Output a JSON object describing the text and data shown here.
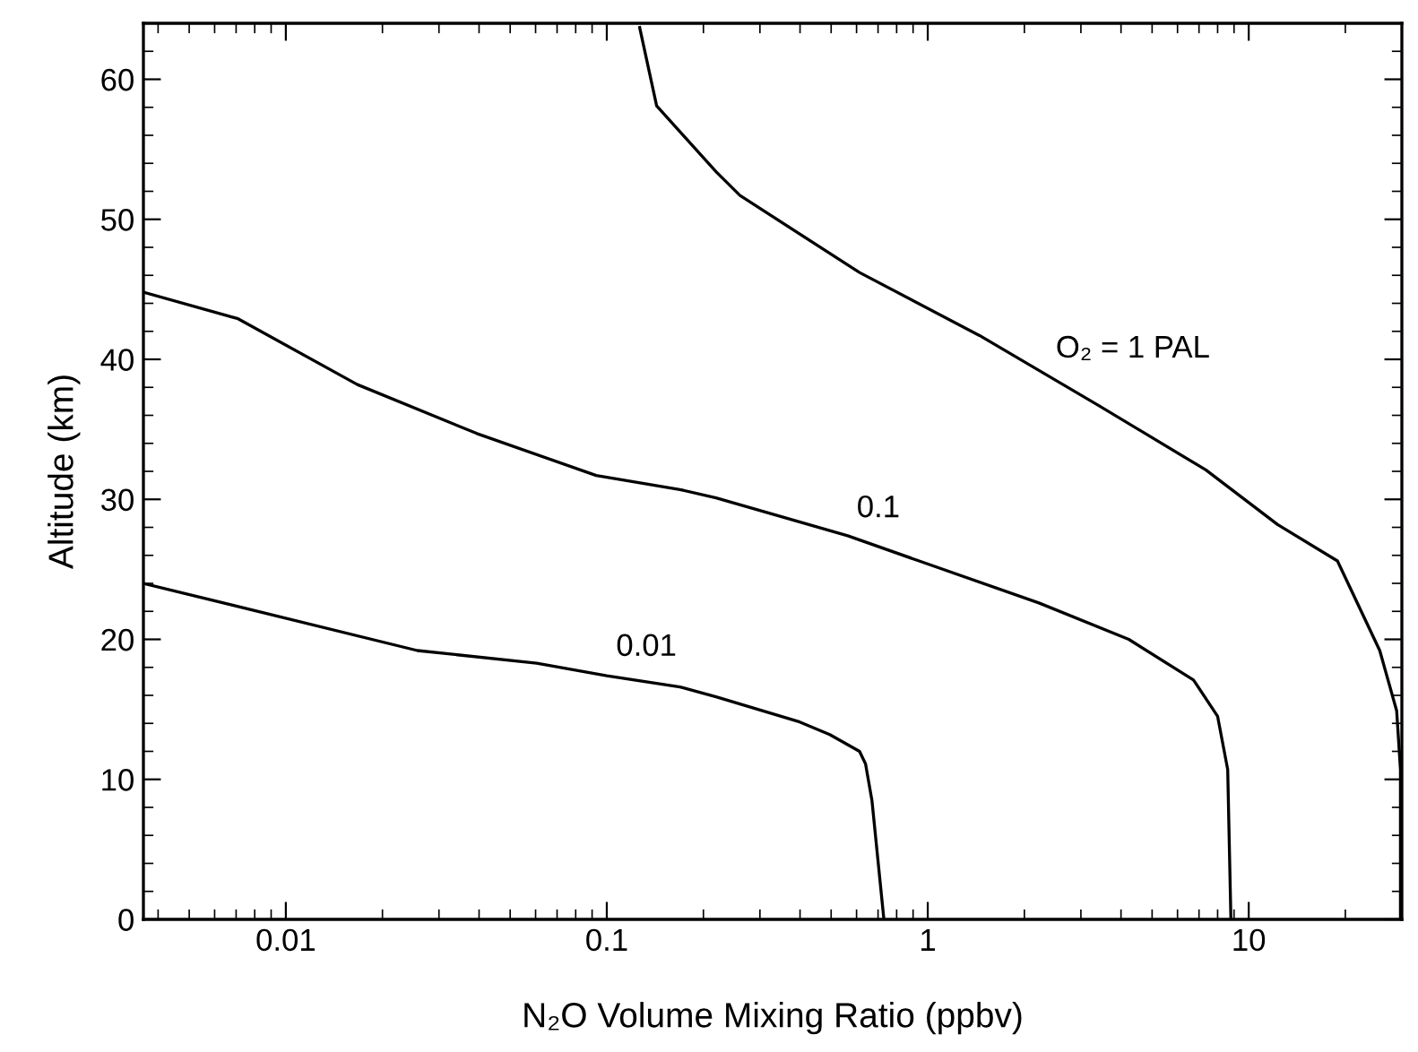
{
  "chart_data": {
    "type": "line",
    "xlabel": "N₂O Volume Mixing Ratio (ppbv)",
    "ylabel": "Altitude (km)",
    "log": "x",
    "xlim": [
      0.0036,
      30
    ],
    "xticks": [
      0.01,
      0.1,
      1,
      10
    ],
    "ylim": [
      0,
      64
    ],
    "yticks": [
      0,
      10,
      20,
      30,
      40,
      50,
      60
    ],
    "grid": false,
    "legend": false,
    "series": [
      {
        "color": "#000000",
        "x": [
          0.0036,
          0.0257,
          0.0605,
          0.1,
          0.169,
          0.219,
          0.399,
          0.495,
          0.613,
          0.64,
          0.67,
          0.73
        ],
        "values": [
          24.0,
          19.2,
          18.3,
          17.4,
          16.6,
          15.9,
          14.1,
          13.2,
          12.0,
          11.1,
          8.5,
          0
        ]
      },
      {
        "color": "#000000",
        "x": [
          0.0036,
          0.0071,
          0.0167,
          0.0394,
          0.0927,
          0.169,
          0.219,
          0.563,
          0.94,
          2.22,
          4.23,
          6.73,
          8.0,
          8.6,
          8.8
        ],
        "values": [
          44.8,
          42.9,
          38.2,
          34.7,
          31.7,
          30.7,
          30.1,
          27.4,
          25.6,
          22.6,
          20.0,
          17.1,
          14.5,
          10.7,
          0
        ]
      },
      {
        "color": "#000000",
        "x": [
          0.1266,
          0.143,
          0.219,
          0.26,
          0.613,
          1.45,
          3.41,
          7.35,
          12.3,
          18.9,
          25.6,
          28.9,
          29.7,
          29.7
        ],
        "values": [
          63.7,
          58.1,
          53.4,
          51.7,
          46.2,
          41.7,
          36.7,
          32.1,
          28.2,
          25.6,
          19.2,
          14.9,
          10.7,
          0
        ]
      }
    ],
    "annotations": [
      {
        "text": "O₂ = 1 PAL",
        "x": 2.46,
        "y": 38.6
      },
      {
        "text": "0.1",
        "x": 0.59,
        "y": 27.2
      },
      {
        "text": "0.01",
        "x": 0.105,
        "y": 17.3
      }
    ]
  }
}
